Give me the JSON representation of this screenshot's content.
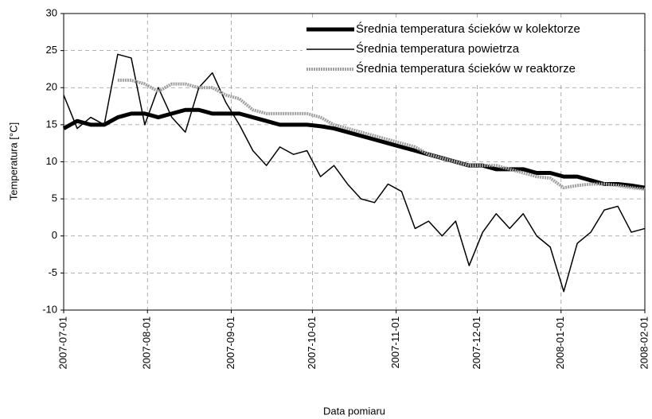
{
  "chart_data": {
    "type": "line",
    "x_label": "Data pomiaru",
    "y_label": "Temperatura [°C]",
    "x": [
      "2007-07-01",
      "2007-07-06",
      "2007-07-11",
      "2007-07-16",
      "2007-07-21",
      "2007-07-26",
      "2007-07-31",
      "2007-08-05",
      "2007-08-10",
      "2007-08-15",
      "2007-08-20",
      "2007-08-25",
      "2007-08-30",
      "2007-09-04",
      "2007-09-09",
      "2007-09-14",
      "2007-09-19",
      "2007-09-24",
      "2007-09-29",
      "2007-10-04",
      "2007-10-09",
      "2007-10-14",
      "2007-10-19",
      "2007-10-24",
      "2007-10-29",
      "2007-11-03",
      "2007-11-08",
      "2007-11-13",
      "2007-11-18",
      "2007-11-23",
      "2007-11-28",
      "2007-12-03",
      "2007-12-08",
      "2007-12-13",
      "2007-12-18",
      "2007-12-23",
      "2007-12-28",
      "2008-01-02",
      "2008-01-07",
      "2008-01-12",
      "2008-01-17",
      "2008-01-22",
      "2008-01-27",
      "2008-02-01"
    ],
    "series": [
      {
        "name": "Średnia temperatura ścieków w kolektorze",
        "color": "#000000",
        "width": 5,
        "values": [
          14.5,
          15.5,
          15,
          15,
          16,
          16.5,
          16.5,
          16,
          16.5,
          17,
          17,
          16.5,
          16.5,
          16.5,
          16,
          15.5,
          15,
          15,
          15,
          14.8,
          14.5,
          14,
          13.5,
          13,
          12.5,
          12,
          11.5,
          11,
          10.5,
          10,
          9.5,
          9.5,
          9,
          9,
          9,
          8.5,
          8.5,
          8,
          8,
          7.5,
          7,
          7,
          6.8,
          6.5
        ]
      },
      {
        "name": "Średnia temperatura powietrza",
        "color": "#000000",
        "width": 1.5,
        "values": [
          19,
          14.5,
          16,
          15,
          24.5,
          24,
          15,
          20,
          16,
          14,
          20,
          22,
          18,
          15,
          11.5,
          9.5,
          12,
          11,
          11.5,
          8,
          9.5,
          7,
          5,
          4.5,
          7,
          6,
          1,
          2,
          0,
          2,
          -4,
          0.5,
          3,
          1,
          3,
          0,
          -1.5,
          -7.5,
          -1,
          0.5,
          3.5,
          4,
          0.5,
          1
        ]
      },
      {
        "name": "Średnia temperatura ścieków w reaktorze",
        "color": "#a0a0a0",
        "width": 4,
        "values": [
          null,
          null,
          null,
          null,
          21,
          21,
          20.5,
          19.5,
          20.5,
          20.5,
          20,
          20,
          19,
          18.5,
          17,
          16.5,
          16.5,
          16.5,
          16.5,
          16,
          15,
          14.5,
          14,
          13.5,
          13,
          12.5,
          12,
          11,
          10.5,
          10,
          9.5,
          9.5,
          9.5,
          9,
          8.5,
          8,
          7.8,
          6.5,
          6.8,
          7,
          7,
          6.8,
          6.5,
          6.3
        ]
      }
    ],
    "xlim": [
      "2007-07-01",
      "2008-02-01"
    ],
    "xticks": [
      "2007-07-01",
      "2007-08-01",
      "2007-09-01",
      "2007-10-01",
      "2007-11-01",
      "2007-12-01",
      "2008-01-01",
      "2008-02-01"
    ],
    "ylim": [
      -10,
      30
    ],
    "yticks": [
      -10,
      -5,
      0,
      5,
      10,
      15,
      20,
      25,
      30
    ],
    "grid": true,
    "legend": "top-right"
  }
}
